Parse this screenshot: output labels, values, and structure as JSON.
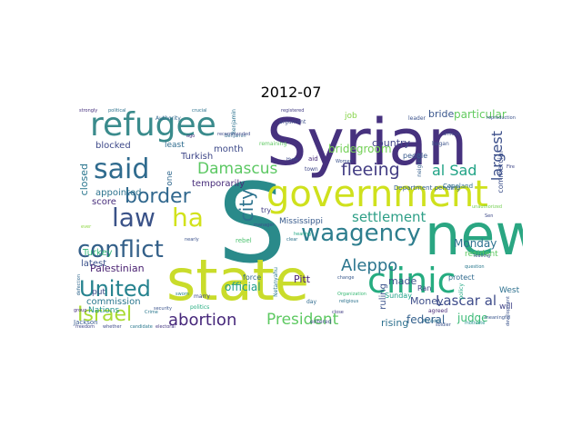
{
  "title": "2012-07",
  "words": [
    {
      "text": "S",
      "color": "#2a8a8a"
    },
    {
      "text": "Syrian",
      "color": "#46317e"
    },
    {
      "text": "state",
      "color": "#c9dc2b"
    },
    {
      "text": "new",
      "color": "#2aa682"
    },
    {
      "text": "government",
      "color": "#cfe11d"
    },
    {
      "text": "refugee",
      "color": "#3a8b8c"
    },
    {
      "text": "clinic",
      "color": "#25ac80"
    },
    {
      "text": "said",
      "color": "#2f6b8e"
    },
    {
      "text": "law",
      "color": "#3a5288"
    },
    {
      "text": "ha",
      "color": "#d2e21b"
    },
    {
      "text": "waagency",
      "color": "#2e7e8e"
    },
    {
      "text": "conflict",
      "color": "#346089"
    },
    {
      "text": "border",
      "color": "#31688e"
    },
    {
      "text": "United",
      "color": "#26838f"
    },
    {
      "text": "Israel",
      "color": "#a9db33"
    },
    {
      "text": "abortion",
      "color": "#46277a"
    },
    {
      "text": "President",
      "color": "#5ec962"
    },
    {
      "text": "fleeing",
      "color": "#433d84"
    },
    {
      "text": "Damascus",
      "color": "#5cc863"
    },
    {
      "text": "settlement",
      "color": "#2e9f87"
    },
    {
      "text": "Aleppo",
      "color": "#2b758e"
    },
    {
      "text": "city",
      "color": "#2c728e"
    },
    {
      "text": "al Sad",
      "color": "#20a386"
    },
    {
      "text": "Lascar al",
      "color": "#3e4c8a"
    },
    {
      "text": "largest",
      "color": "#3c4f8a"
    },
    {
      "text": "bridegroom",
      "color": "#73d056"
    },
    {
      "text": "particular",
      "color": "#63cb5f"
    },
    {
      "text": "bride",
      "color": "#39568c"
    },
    {
      "text": "country",
      "color": "#404588"
    },
    {
      "text": "Monday",
      "color": "#2c718e"
    },
    {
      "text": "official",
      "color": "#1f9e89"
    },
    {
      "text": "federal",
      "color": "#34618d"
    },
    {
      "text": "judge",
      "color": "#3aba76"
    },
    {
      "text": "rising",
      "color": "#2d708e"
    },
    {
      "text": "Money",
      "color": "#3d4e8a"
    },
    {
      "text": "Pitt",
      "color": "#482475"
    },
    {
      "text": "made",
      "color": "#3b528b"
    },
    {
      "text": "Palestinian",
      "color": "#481f70"
    },
    {
      "text": "commission",
      "color": "#2a778e"
    },
    {
      "text": "blocked",
      "color": "#3e4989"
    },
    {
      "text": "latest",
      "color": "#3b518b"
    },
    {
      "text": "Turkish",
      "color": "#3f4788"
    },
    {
      "text": "score",
      "color": "#472d7b"
    },
    {
      "text": "Turkey",
      "color": "#35b779"
    },
    {
      "text": "appointed",
      "color": "#2c738e"
    },
    {
      "text": "temporarily",
      "color": "#472c7a"
    },
    {
      "text": "month",
      "color": "#3e4a89"
    },
    {
      "text": "least",
      "color": "#2f6c8e"
    },
    {
      "text": "closed",
      "color": "#2a768e"
    },
    {
      "text": "put",
      "color": "#3d4d8a"
    },
    {
      "text": "Nations",
      "color": "#21918c"
    },
    {
      "text": "Mississippi",
      "color": "#375a8c"
    },
    {
      "text": "ruling",
      "color": "#3b528b"
    },
    {
      "text": "West",
      "color": "#2d708e"
    },
    {
      "text": "will",
      "color": "#414487"
    },
    {
      "text": "resident",
      "color": "#5ec962"
    },
    {
      "text": "commercial",
      "color": "#3c4f8a"
    },
    {
      "text": "people",
      "color": "#38598c"
    },
    {
      "text": "job",
      "color": "#87d549"
    },
    {
      "text": "Sunday",
      "color": "#1fa188"
    },
    {
      "text": "protect",
      "color": "#306a8e"
    },
    {
      "text": "Ran",
      "color": "#424186"
    },
    {
      "text": "one",
      "color": "#31688e"
    },
    {
      "text": "force",
      "color": "#31688e"
    },
    {
      "text": "try",
      "color": "#433e85"
    },
    {
      "text": "Jackson",
      "color": "#375b8d"
    },
    {
      "text": "entered",
      "color": "#3e4989"
    },
    {
      "text": "day",
      "color": "#2f6b8e"
    },
    {
      "text": "marry",
      "color": "#3f4889"
    },
    {
      "text": "Department pending",
      "color": "#35608d"
    },
    {
      "text": "Copeland",
      "color": "#2e6f8e"
    },
    {
      "text": "neighbor",
      "color": "#355f8d"
    },
    {
      "text": "leader",
      "color": "#3b528b"
    },
    {
      "text": "argument",
      "color": "#3c4f8a"
    },
    {
      "text": "remaining",
      "color": "#5ec962"
    },
    {
      "text": "group",
      "color": "#472f7d"
    },
    {
      "text": "aid",
      "color": "#472c7a"
    },
    {
      "text": "town",
      "color": "#3f4788"
    },
    {
      "text": "Authority",
      "color": "#31688e"
    },
    {
      "text": "Benjamin",
      "color": "#2c728e"
    },
    {
      "text": "politics",
      "color": "#26ad81"
    },
    {
      "text": "agreed",
      "color": "#482878"
    },
    {
      "text": "began",
      "color": "#3b528b"
    },
    {
      "text": "rebel",
      "color": "#4ac16d"
    },
    {
      "text": "policy",
      "color": "#22a884"
    },
    {
      "text": "change",
      "color": "#38588c"
    },
    {
      "text": "Organization",
      "color": "#3aba76"
    },
    {
      "text": "security",
      "color": "#3a548c"
    },
    {
      "text": "crucial",
      "color": "#2c728e"
    },
    {
      "text": "political",
      "color": "#2c728e"
    },
    {
      "text": "strongly",
      "color": "#46307e"
    },
    {
      "text": "difficult",
      "color": "#3f4788"
    },
    {
      "text": "registered",
      "color": "#433d84"
    },
    {
      "text": "reproduction",
      "color": "#3b528b"
    },
    {
      "text": "leaving",
      "color": "#3b528b"
    },
    {
      "text": "Crime",
      "color": "#2a788e"
    },
    {
      "text": "close",
      "color": "#433d84"
    },
    {
      "text": "Minister",
      "color": "#2c728e"
    },
    {
      "text": "motivate",
      "color": "#21918c"
    },
    {
      "text": "soldier",
      "color": "#3b528b"
    },
    {
      "text": "freedom",
      "color": "#3f4788"
    },
    {
      "text": "whether",
      "color": "#3e4a89"
    },
    {
      "text": "candidate",
      "color": "#2a788e"
    },
    {
      "text": "electoral",
      "color": "#453882"
    },
    {
      "text": "defection",
      "color": "#31688e"
    },
    {
      "text": "Netanyahu",
      "color": "#2a788e"
    },
    {
      "text": "meaningful",
      "color": "#39568c"
    },
    {
      "text": "unauthorized",
      "color": "#75d054"
    },
    {
      "text": "development",
      "color": "#3b528b"
    },
    {
      "text": "question",
      "color": "#2a788e"
    },
    {
      "text": "Sen",
      "color": "#3e4989"
    },
    {
      "text": "ago",
      "color": "#46307e"
    },
    {
      "text": "nearly",
      "color": "#3b528b"
    },
    {
      "text": "Benjamin",
      "color": "#31688e"
    },
    {
      "text": "manager",
      "color": "#3b528b"
    },
    {
      "text": "recommended",
      "color": "#3e4a89"
    },
    {
      "text": "clear",
      "color": "#2c728e"
    },
    {
      "text": "religious",
      "color": "#2c728e"
    },
    {
      "text": "Women",
      "color": "#3b528b"
    },
    {
      "text": "hearing",
      "color": "#22a884"
    },
    {
      "text": "Fire",
      "color": "#3f4788"
    },
    {
      "text": "ever",
      "color": "#8fd744"
    },
    {
      "text": "sworn",
      "color": "#26828e"
    },
    {
      "text": "Hyde",
      "color": "#3e4a89"
    }
  ]
}
